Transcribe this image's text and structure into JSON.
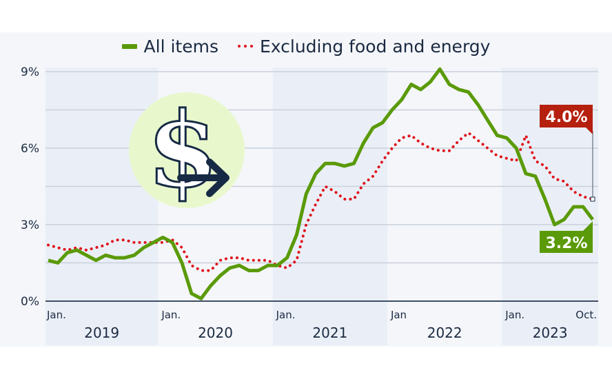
{
  "legend": {
    "all_items": "All items",
    "excluding": "Excluding food and energy"
  },
  "colors": {
    "all_items": "#5a9a08",
    "excluding": "#e0121b",
    "callout_red": "#b5200f",
    "callout_green": "#5a9a08",
    "icon_circle": "#e9f8cc",
    "icon_dark": "#162a45"
  },
  "icon": "dollar-arrow-icon",
  "chart_data": {
    "type": "line",
    "title": "",
    "xlabel": "",
    "ylabel": "",
    "ylim": [
      0,
      9
    ],
    "yticks": [
      "0%",
      "3%",
      "6%",
      "9%"
    ],
    "ytick_values": [
      0,
      3,
      6,
      9
    ],
    "grid": true,
    "legend_position": "top",
    "x_start": "Jan. 2019",
    "x_end": "Oct. 2023",
    "month_labels": [
      {
        "label": "Jan.",
        "index": 0
      },
      {
        "label": "Jan.",
        "index": 12
      },
      {
        "label": "Jan.",
        "index": 24
      },
      {
        "label": "Jan",
        "index": 36
      },
      {
        "label": "Jan.",
        "index": 48
      },
      {
        "label": "Oct.",
        "index": 57
      }
    ],
    "years": [
      "2019",
      "2020",
      "2021",
      "2022",
      "2023"
    ],
    "series": [
      {
        "name": "All items",
        "style": "solid",
        "values": [
          1.6,
          1.5,
          1.9,
          2.0,
          1.8,
          1.6,
          1.8,
          1.7,
          1.7,
          1.8,
          2.1,
          2.3,
          2.5,
          2.3,
          1.5,
          0.3,
          0.1,
          0.6,
          1.0,
          1.3,
          1.4,
          1.2,
          1.2,
          1.4,
          1.4,
          1.7,
          2.6,
          4.2,
          5.0,
          5.4,
          5.4,
          5.3,
          5.4,
          6.2,
          6.8,
          7.0,
          7.5,
          7.9,
          8.5,
          8.3,
          8.6,
          9.1,
          8.5,
          8.3,
          8.2,
          7.7,
          7.1,
          6.5,
          6.4,
          6.0,
          5.0,
          4.9,
          4.0,
          3.0,
          3.2,
          3.7,
          3.7,
          3.2
        ]
      },
      {
        "name": "Excluding food and energy",
        "style": "dotted",
        "values": [
          2.2,
          2.1,
          2.0,
          2.1,
          2.0,
          2.1,
          2.2,
          2.4,
          2.4,
          2.3,
          2.3,
          2.3,
          2.3,
          2.4,
          2.1,
          1.4,
          1.2,
          1.2,
          1.6,
          1.7,
          1.7,
          1.6,
          1.6,
          1.6,
          1.4,
          1.3,
          1.6,
          3.0,
          3.8,
          4.5,
          4.3,
          4.0,
          4.0,
          4.6,
          4.9,
          5.5,
          6.0,
          6.4,
          6.5,
          6.2,
          6.0,
          5.9,
          5.9,
          6.3,
          6.6,
          6.3,
          6.0,
          5.7,
          5.6,
          5.5,
          6.5,
          5.5,
          5.3,
          4.8,
          4.7,
          4.3,
          4.1,
          4.0
        ]
      }
    ],
    "annotations": [
      {
        "series": "Excluding food and energy",
        "label": "4.0%"
      },
      {
        "series": "All items",
        "label": "3.2%"
      }
    ]
  }
}
